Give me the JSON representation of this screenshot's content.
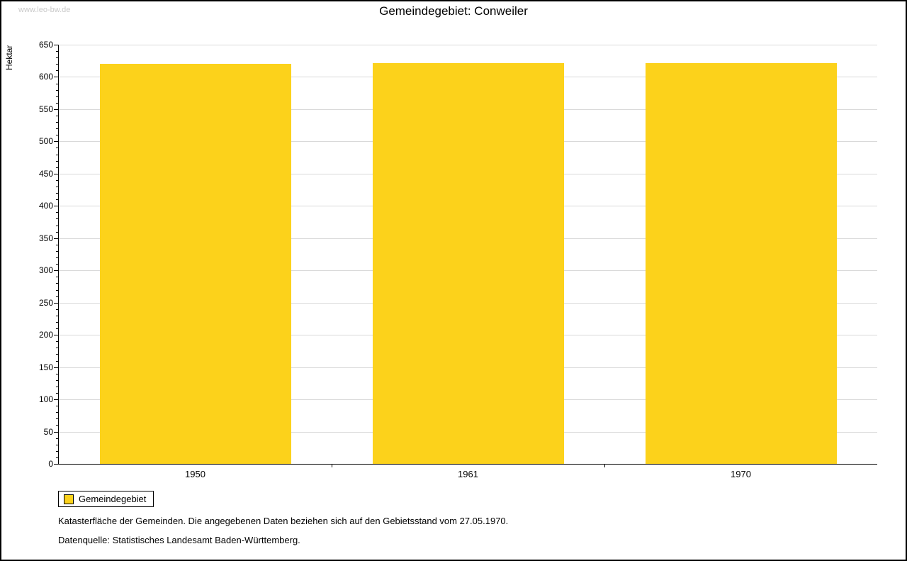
{
  "page": {
    "watermark": "www.leo-bw.de",
    "footnotes": [
      "Katasterfläche der Gemeinden. Die angegebenen Daten beziehen sich auf den Gebietsstand vom 27.05.1970.",
      "Datenquelle: Statistisches Landesamt Baden-Württemberg."
    ]
  },
  "chart_data": {
    "type": "bar",
    "title": "Gemeindegebiet: Conweiler",
    "categories": [
      "1950",
      "1961",
      "1970"
    ],
    "series": [
      {
        "name": "Gemeindegebiet",
        "values": [
          620,
          621,
          621
        ]
      }
    ],
    "xlabel": "",
    "ylabel": "Hektar",
    "ylim": [
      0,
      650
    ],
    "ytick_step": 50,
    "minor_tick_step": 10,
    "bar_color": "#FCD21B",
    "grid": true,
    "legend_position": "bottom-left"
  }
}
